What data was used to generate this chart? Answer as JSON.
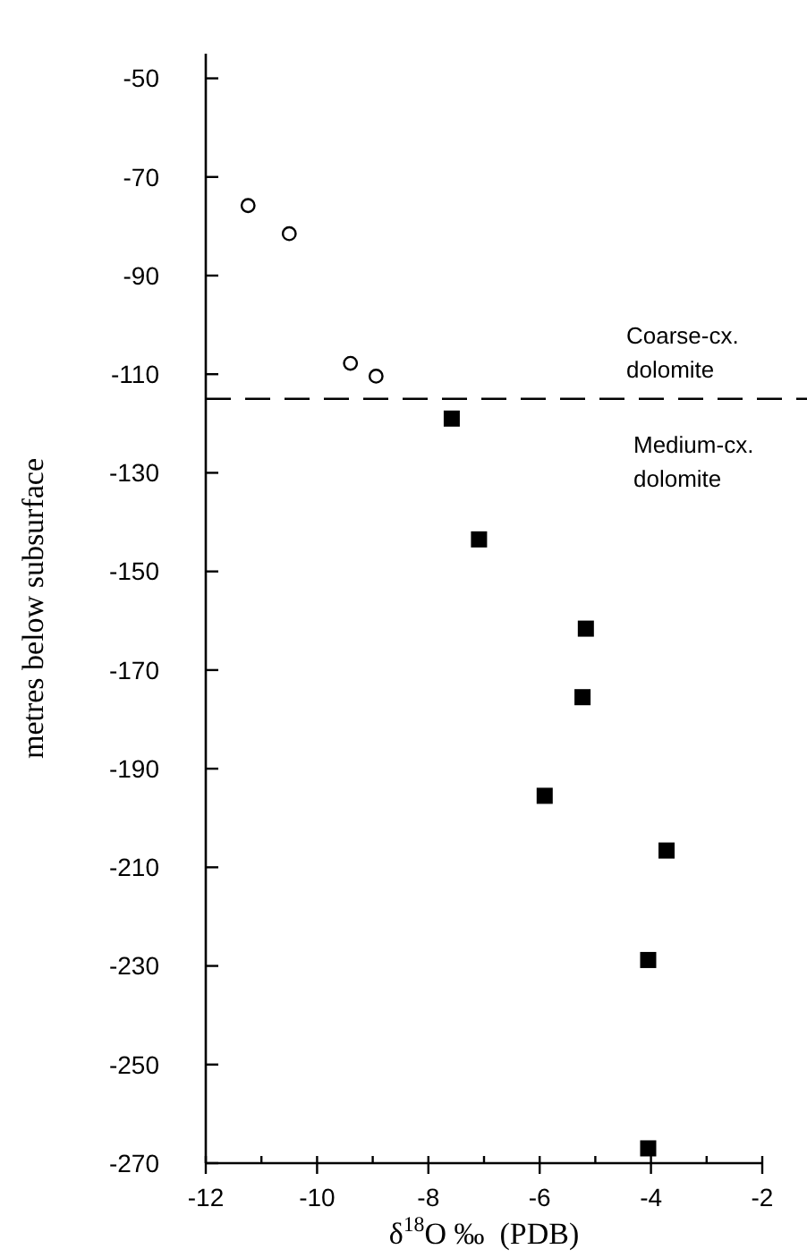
{
  "chart_data": {
    "type": "scatter",
    "xlabel": "δ$^{18}$O ‰  (PDB)",
    "ylabel": "metres below subsurface",
    "xlim": [
      -12,
      -2
    ],
    "xticks": [
      -12,
      {
        "value": -11,
        "label": null
      },
      -10,
      {
        "value": -9,
        "label": null
      },
      -8,
      {
        "value": -7,
        "label": null
      },
      -6,
      {
        "value": -5,
        "label": null
      },
      -4,
      {
        "value": -3,
        "label": null
      },
      -2
    ],
    "ylim": [
      -270,
      -45
    ],
    "yticks": [
      -50,
      -70,
      -90,
      -110,
      -130,
      -150,
      -170,
      -190,
      -210,
      -230,
      -250,
      -270
    ],
    "grid": false,
    "series": [
      {
        "color": "#000000",
        "marker": "circle",
        "x": [
          -11.24,
          -10.5,
          -9.4,
          -8.94
        ],
        "values": [
          -75.8,
          -81.5,
          -107.8,
          -110.4
        ]
      },
      {
        "color": "#000000",
        "marker": "square",
        "x": [
          -7.58,
          -7.09,
          -5.17,
          -5.23,
          -5.91,
          -3.72,
          -4.05,
          -4.05
        ],
        "values": [
          -119,
          -143.5,
          -161.6,
          -175.5,
          -195.5,
          -206.6,
          -228.8,
          -267
        ]
      }
    ],
    "ref_lines": [
      {
        "axis": "y",
        "value": -115,
        "line_style": "dashed",
        "color": "#000000"
      }
    ],
    "annotations": [
      "Coarse-cx.\ndolomite",
      "Medium-cx.\ndolomite"
    ]
  }
}
